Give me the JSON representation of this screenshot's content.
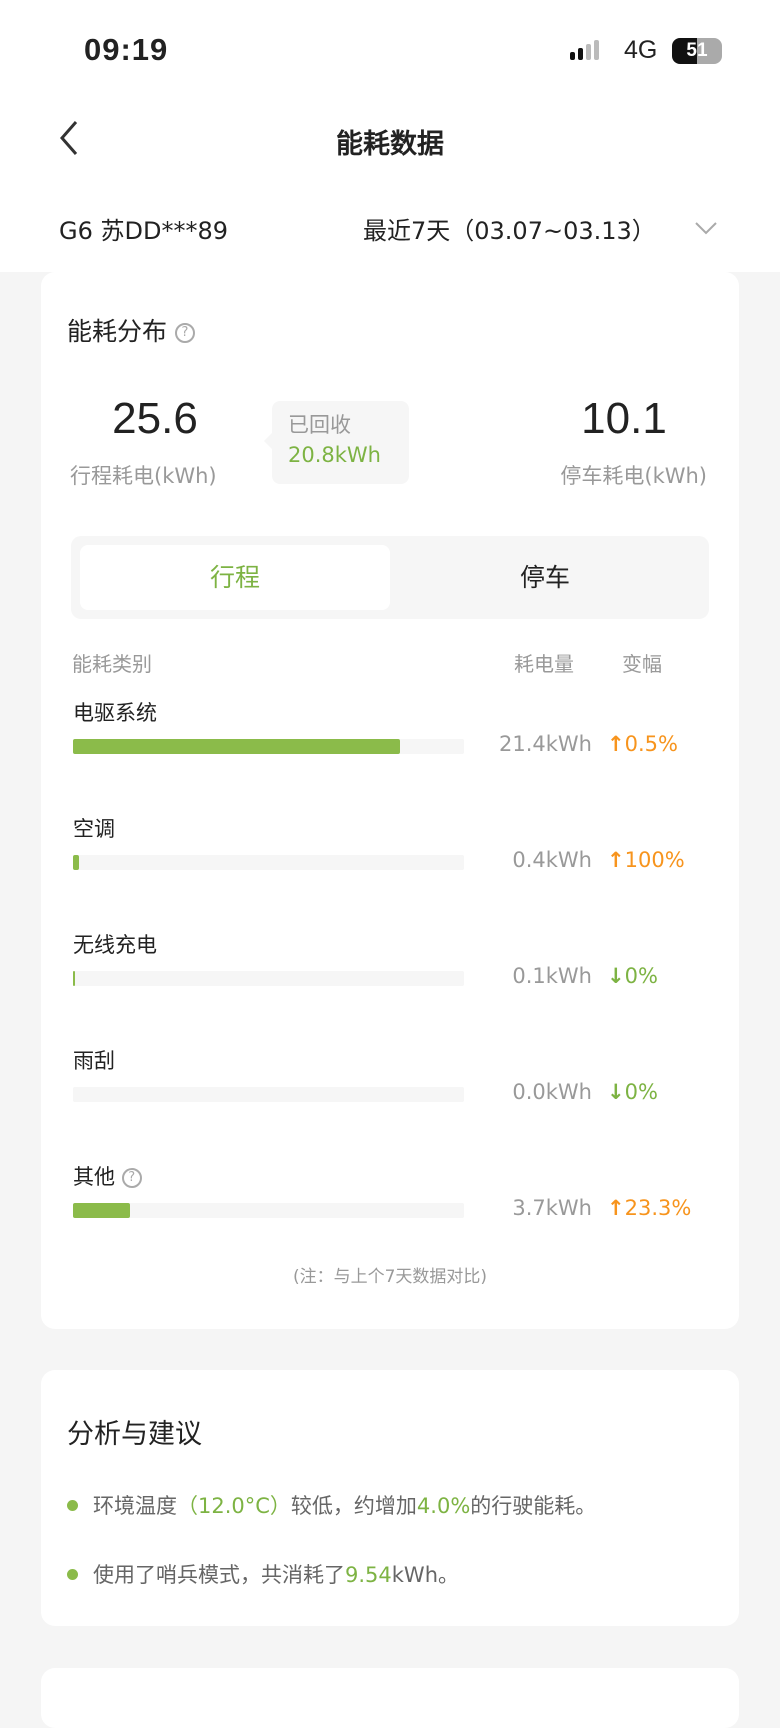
{
  "status_bar": {
    "time": "09:19",
    "network": "4G",
    "battery": "51"
  },
  "header": {
    "title": "能耗数据",
    "back_icon": "chevron-left-icon"
  },
  "filter": {
    "vehicle": "G6 苏DD***89",
    "period": "最近7天（03.07~03.13）"
  },
  "colors": {
    "accent_green": "#7db343",
    "bar_green": "#8bbb4a",
    "increase_orange": "#f7941d"
  },
  "distribution": {
    "title": "能耗分布",
    "help_icon": "question-circle-icon",
    "trip_value": "25.6",
    "trip_label": "行程耗电(kWh)",
    "recovered_label": "已回收",
    "recovered_value": "20.8kWh",
    "park_value": "10.1",
    "park_label": "停车耗电(kWh)",
    "tabs": [
      {
        "label": "行程",
        "active": true
      },
      {
        "label": "停车",
        "active": false
      }
    ],
    "columns": {
      "category": "能耗类别",
      "amount": "耗电量",
      "change": "变幅"
    },
    "rows": [
      {
        "label": "电驱系统",
        "kwh": 21.4,
        "value": "21.4kWh",
        "direction": "up",
        "change": "0.5%"
      },
      {
        "label": "空调",
        "kwh": 0.4,
        "value": "0.4kWh",
        "direction": "up",
        "change": "100%"
      },
      {
        "label": "无线充电",
        "kwh": 0.1,
        "value": "0.1kWh",
        "direction": "down",
        "change": "0%"
      },
      {
        "label": "雨刮",
        "kwh": 0.0,
        "value": "0.0kWh",
        "direction": "down",
        "change": "0%"
      },
      {
        "label": "其他",
        "kwh": 3.7,
        "value": "3.7kWh",
        "direction": "up",
        "change": "23.3%",
        "help": true
      }
    ],
    "note": "(注：与上个7天数据对比)"
  },
  "analysis": {
    "title": "分析与建议",
    "items": [
      {
        "parts": [
          {
            "t": "环境温度"
          },
          {
            "t": "（12.0°C）",
            "hl": true
          },
          {
            "t": "较低，约增加"
          },
          {
            "t": "4.0%",
            "hl": true
          },
          {
            "t": "的行驶能耗。"
          }
        ]
      },
      {
        "parts": [
          {
            "t": "使用了哨兵模式，共消耗了"
          },
          {
            "t": "9.54",
            "hl": true
          },
          {
            "t": "kWh。"
          }
        ]
      }
    ]
  }
}
